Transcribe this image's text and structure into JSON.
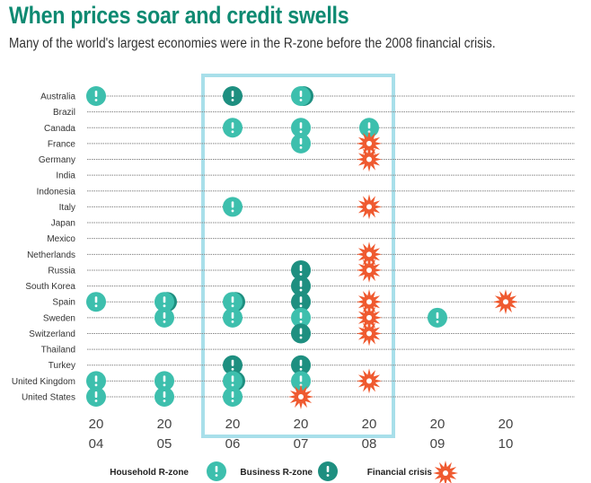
{
  "title": "When prices soar and credit swells",
  "subtitle": "Many of the world's largest economies were in the R-zone before the 2008 financial crisis.",
  "colors": {
    "household": "#3dbfad",
    "business": "#1e8f80",
    "crisis": "#ef5a30",
    "highlight": "#a8dfea",
    "title": "#0e8a72"
  },
  "chart_data": {
    "type": "scatter",
    "title": "When prices soar and credit swells",
    "countries": [
      "Australia",
      "Brazil",
      "Canada",
      "France",
      "Germany",
      "India",
      "Indonesia",
      "Italy",
      "Japan",
      "Mexico",
      "Netherlands",
      "Russia",
      "South Korea",
      "Spain",
      "Sweden",
      "Switzerland",
      "Thailand",
      "Turkey",
      "United Kingdom",
      "United States"
    ],
    "years": [
      2004,
      2005,
      2006,
      2007,
      2008,
      2009,
      2010
    ],
    "year_labels": [
      [
        "20",
        "04"
      ],
      [
        "20",
        "05"
      ],
      [
        "20",
        "06"
      ],
      [
        "20",
        "07"
      ],
      [
        "20",
        "08"
      ],
      [
        "20",
        "09"
      ],
      [
        "20",
        "10"
      ]
    ],
    "highlight_years": [
      2006,
      2008
    ],
    "events": [
      {
        "country": "Australia",
        "year": 2004,
        "type": "household"
      },
      {
        "country": "Australia",
        "year": 2006,
        "type": "business"
      },
      {
        "country": "Australia",
        "year": 2007,
        "type": "both"
      },
      {
        "country": "Canada",
        "year": 2006,
        "type": "household"
      },
      {
        "country": "Canada",
        "year": 2007,
        "type": "household"
      },
      {
        "country": "Canada",
        "year": 2008,
        "type": "household"
      },
      {
        "country": "France",
        "year": 2007,
        "type": "household"
      },
      {
        "country": "France",
        "year": 2008,
        "type": "crisis"
      },
      {
        "country": "Germany",
        "year": 2008,
        "type": "crisis"
      },
      {
        "country": "Italy",
        "year": 2006,
        "type": "household"
      },
      {
        "country": "Italy",
        "year": 2008,
        "type": "crisis"
      },
      {
        "country": "Netherlands",
        "year": 2008,
        "type": "crisis"
      },
      {
        "country": "Russia",
        "year": 2007,
        "type": "business"
      },
      {
        "country": "Russia",
        "year": 2008,
        "type": "crisis"
      },
      {
        "country": "South Korea",
        "year": 2007,
        "type": "business"
      },
      {
        "country": "Spain",
        "year": 2004,
        "type": "household"
      },
      {
        "country": "Spain",
        "year": 2005,
        "type": "both"
      },
      {
        "country": "Spain",
        "year": 2006,
        "type": "both"
      },
      {
        "country": "Spain",
        "year": 2007,
        "type": "business"
      },
      {
        "country": "Spain",
        "year": 2008,
        "type": "crisis"
      },
      {
        "country": "Spain",
        "year": 2010,
        "type": "crisis"
      },
      {
        "country": "Sweden",
        "year": 2005,
        "type": "household"
      },
      {
        "country": "Sweden",
        "year": 2006,
        "type": "household"
      },
      {
        "country": "Sweden",
        "year": 2007,
        "type": "household"
      },
      {
        "country": "Sweden",
        "year": 2008,
        "type": "crisis"
      },
      {
        "country": "Sweden",
        "year": 2009,
        "type": "household"
      },
      {
        "country": "Switzerland",
        "year": 2007,
        "type": "business"
      },
      {
        "country": "Switzerland",
        "year": 2008,
        "type": "crisis"
      },
      {
        "country": "Turkey",
        "year": 2006,
        "type": "business"
      },
      {
        "country": "Turkey",
        "year": 2007,
        "type": "business"
      },
      {
        "country": "United Kingdom",
        "year": 2004,
        "type": "household"
      },
      {
        "country": "United Kingdom",
        "year": 2005,
        "type": "household"
      },
      {
        "country": "United Kingdom",
        "year": 2006,
        "type": "both"
      },
      {
        "country": "United Kingdom",
        "year": 2007,
        "type": "household"
      },
      {
        "country": "United Kingdom",
        "year": 2008,
        "type": "crisis"
      },
      {
        "country": "United States",
        "year": 2004,
        "type": "household"
      },
      {
        "country": "United States",
        "year": 2005,
        "type": "household"
      },
      {
        "country": "United States",
        "year": 2006,
        "type": "household"
      },
      {
        "country": "United States",
        "year": 2007,
        "type": "crisis"
      }
    ],
    "legend": [
      {
        "label": "Household R-zone",
        "type": "household"
      },
      {
        "label": "Business R-zone",
        "type": "business"
      },
      {
        "label": "Financial crisis",
        "type": "crisis"
      }
    ],
    "legend_position": "bottom"
  }
}
